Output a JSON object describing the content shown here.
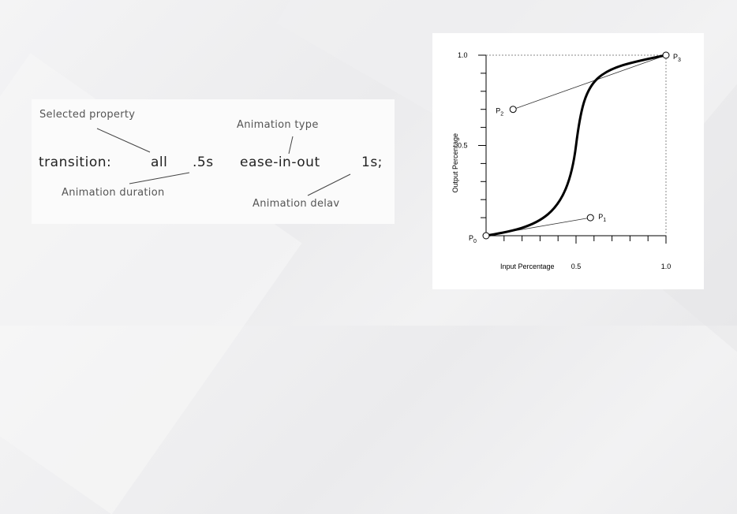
{
  "code": {
    "keyword": "transition:",
    "property": "all",
    "duration": ".5s",
    "timing": "ease-in-out",
    "delay": "1s;"
  },
  "annotations": {
    "selected_property": "Selected property",
    "animation_type": "Animation type",
    "animation_duration": "Animation duration",
    "animation_delay": "Animation delav"
  },
  "chart_data": {
    "type": "line",
    "xlabel": "Input Percentage",
    "ylabel": "Output Percentage",
    "xlim": [
      0,
      1
    ],
    "ylim": [
      0,
      1
    ],
    "x_tick_labels": [
      "0.5",
      "1.0"
    ],
    "y_tick_labels": [
      "1.0",
      "0.5"
    ],
    "control_points": [
      {
        "name": "P0",
        "sub": "0",
        "x": 0.0,
        "y": 0.0
      },
      {
        "name": "P1",
        "sub": "1",
        "x": 0.58,
        "y": 0.1
      },
      {
        "name": "P2",
        "sub": "2",
        "x": 0.15,
        "y": 0.7
      },
      {
        "name": "P3",
        "sub": "3",
        "x": 1.0,
        "y": 1.0
      }
    ],
    "point_letter": "P",
    "colors": {
      "curve": "#000000",
      "axis": "#000000",
      "guide": "#888888"
    }
  }
}
